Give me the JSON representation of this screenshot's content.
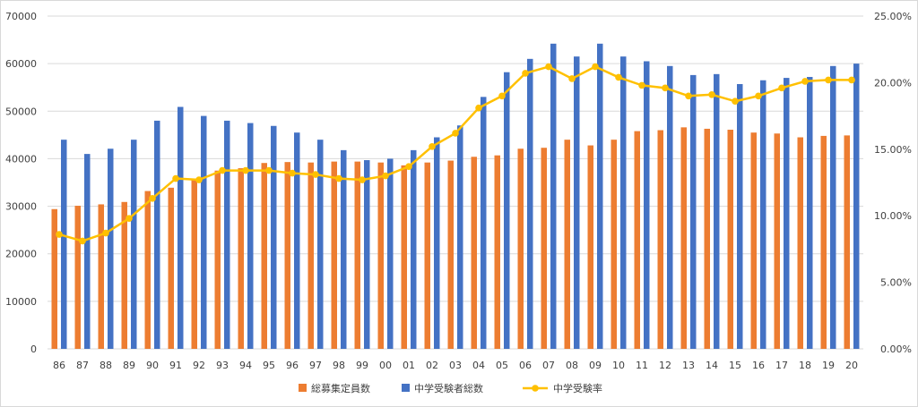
{
  "chart_data": {
    "type": "bar",
    "categories": [
      "86",
      "87",
      "88",
      "89",
      "90",
      "91",
      "92",
      "93",
      "94",
      "95",
      "96",
      "97",
      "98",
      "99",
      "00",
      "01",
      "02",
      "03",
      "04",
      "05",
      "06",
      "07",
      "08",
      "09",
      "10",
      "11",
      "12",
      "13",
      "14",
      "15",
      "16",
      "17",
      "18",
      "19",
      "20"
    ],
    "series": [
      {
        "name": "総募集定員数",
        "type": "bar",
        "axis": "left",
        "color": "#ed7d31",
        "values": [
          29400,
          30100,
          30400,
          30900,
          33200,
          33900,
          35600,
          37500,
          38000,
          39100,
          39300,
          39200,
          39400,
          39400,
          39200,
          38600,
          39200,
          39600,
          40400,
          40700,
          42100,
          42300,
          44000,
          42800,
          44000,
          45800,
          46000,
          46600,
          46300,
          46100,
          45500,
          45300,
          44500,
          44800,
          44900
        ]
      },
      {
        "name": "中学受験者総数",
        "type": "bar",
        "axis": "left",
        "color": "#4472c4",
        "values": [
          44000,
          41000,
          42100,
          44000,
          48000,
          50900,
          49000,
          48000,
          47500,
          46900,
          45500,
          44000,
          41800,
          39700,
          40000,
          41800,
          44500,
          47000,
          53000,
          58200,
          61000,
          64200,
          61500,
          64200,
          61500,
          60500,
          59500,
          57600,
          57800,
          55700,
          56500,
          57000,
          57200,
          59500,
          60000
        ]
      },
      {
        "name": "中学受験率",
        "type": "line",
        "axis": "right",
        "color": "#ffc000",
        "values": [
          8.6,
          8.1,
          8.7,
          9.8,
          11.3,
          12.8,
          12.7,
          13.4,
          13.4,
          13.4,
          13.2,
          13.1,
          12.8,
          12.7,
          13.0,
          13.7,
          15.2,
          16.2,
          18.1,
          19.0,
          20.7,
          21.2,
          20.3,
          21.2,
          20.4,
          19.8,
          19.6,
          19.0,
          19.1,
          18.6,
          19.0,
          19.6,
          20.1,
          20.2,
          20.2
        ]
      }
    ],
    "y_left": {
      "min": 0,
      "max": 70000,
      "step": 10000,
      "ticks": [
        "0",
        "10000",
        "20000",
        "30000",
        "40000",
        "50000",
        "60000",
        "70000"
      ]
    },
    "y_right": {
      "min": 0,
      "max": 25,
      "step": 5,
      "ticks": [
        "0.00%",
        "5.00%",
        "10.00%",
        "15.00%",
        "20.00%",
        "25.00%"
      ]
    },
    "grid": true,
    "legend_position": "bottom",
    "gridline_color": "#d9d9d9"
  }
}
